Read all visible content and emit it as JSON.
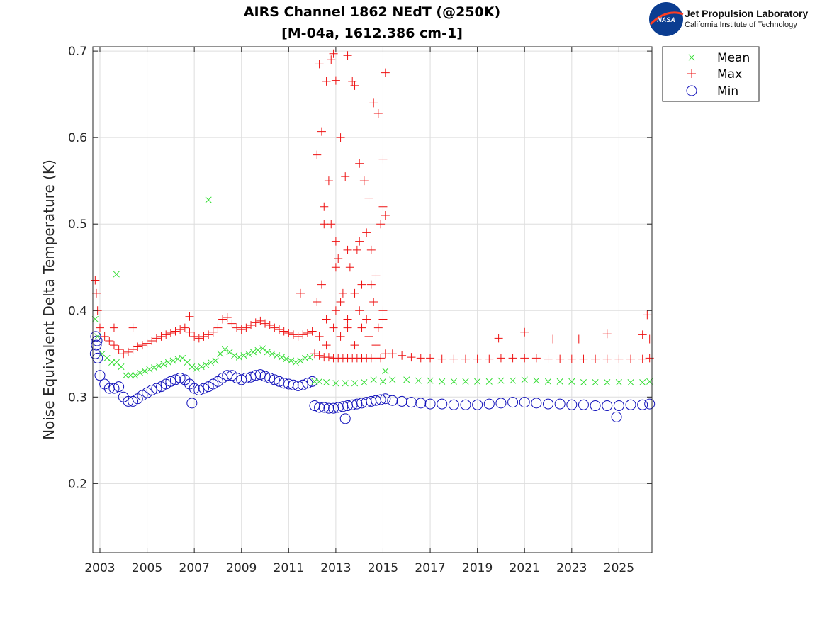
{
  "chart_data": {
    "type": "scatter",
    "title": [
      "AIRS Channel 1862 NEdT (@250K)",
      "[M-04a, 1612.386 cm-1]"
    ],
    "ylabel": "Noise Equivalent Delta Temperature (K)",
    "xlabel": "",
    "xlim": [
      2002.7,
      2026.4
    ],
    "ylim": [
      0.12,
      0.705
    ],
    "xticks": [
      2003,
      2005,
      2007,
      2009,
      2011,
      2013,
      2015,
      2017,
      2019,
      2021,
      2023,
      2025
    ],
    "yticks": [
      0.2,
      0.3,
      0.4,
      0.5,
      0.6,
      0.7
    ],
    "xticklabels": [
      "2003",
      "2005",
      "2007",
      "2009",
      "2011",
      "2013",
      "2015",
      "2017",
      "2019",
      "2021",
      "2023",
      "2025"
    ],
    "yticklabels": [
      "0.2",
      "0.3",
      "0.4",
      "0.5",
      "0.6",
      "0.7"
    ],
    "grid": true,
    "legend_position": "outside-top-right",
    "colors": {
      "Mean": "#33dd33",
      "Max": "#ee1111",
      "Min": "#1111bb"
    },
    "series": [
      {
        "name": "Mean",
        "marker": "x",
        "x": [
          2002.8,
          2002.9,
          2003.1,
          2003.3,
          2003.5,
          2003.7,
          2003.9,
          2004.1,
          2004.3,
          2004.5,
          2004.7,
          2004.9,
          2005.1,
          2005.3,
          2005.5,
          2005.7,
          2005.9,
          2006.1,
          2006.3,
          2006.5,
          2006.7,
          2006.9,
          2007.1,
          2007.3,
          2007.5,
          2007.7,
          2007.9,
          2008.1,
          2008.3,
          2008.5,
          2008.7,
          2008.9,
          2009.1,
          2009.3,
          2009.5,
          2009.7,
          2009.9,
          2010.1,
          2010.3,
          2010.5,
          2010.7,
          2010.9,
          2011.1,
          2011.3,
          2011.5,
          2011.7,
          2011.9,
          2012.1,
          2012.3,
          2012.6,
          2013.0,
          2013.4,
          2013.8,
          2014.2,
          2014.6,
          2015.0,
          2015.1,
          2015.4,
          2016.0,
          2016.5,
          2017.0,
          2017.5,
          2018.0,
          2018.5,
          2019.0,
          2019.5,
          2020.0,
          2020.5,
          2021.0,
          2021.5,
          2022.0,
          2022.5,
          2023.0,
          2023.5,
          2024.0,
          2024.5,
          2025.0,
          2025.5,
          2026.0,
          2026.3,
          2003.7,
          2007.6
        ],
        "y": [
          0.39,
          0.37,
          0.35,
          0.345,
          0.34,
          0.34,
          0.335,
          0.325,
          0.325,
          0.325,
          0.328,
          0.33,
          0.332,
          0.334,
          0.336,
          0.338,
          0.34,
          0.342,
          0.344,
          0.345,
          0.34,
          0.335,
          0.333,
          0.335,
          0.337,
          0.34,
          0.342,
          0.35,
          0.355,
          0.352,
          0.348,
          0.346,
          0.348,
          0.35,
          0.352,
          0.354,
          0.356,
          0.352,
          0.35,
          0.348,
          0.346,
          0.344,
          0.342,
          0.34,
          0.342,
          0.345,
          0.346,
          0.318,
          0.318,
          0.317,
          0.316,
          0.316,
          0.316,
          0.317,
          0.32,
          0.318,
          0.33,
          0.32,
          0.32,
          0.319,
          0.319,
          0.318,
          0.318,
          0.318,
          0.318,
          0.318,
          0.319,
          0.319,
          0.32,
          0.319,
          0.318,
          0.318,
          0.318,
          0.317,
          0.317,
          0.317,
          0.317,
          0.317,
          0.317,
          0.318,
          0.442,
          0.528
        ]
      },
      {
        "name": "Max",
        "marker": "+",
        "x": [
          2002.8,
          2002.85,
          2002.9,
          2003.0,
          2003.2,
          2003.4,
          2003.6,
          2003.8,
          2004.0,
          2004.2,
          2004.4,
          2004.6,
          2004.8,
          2005.0,
          2005.2,
          2005.4,
          2005.6,
          2005.8,
          2006.0,
          2006.2,
          2006.4,
          2006.6,
          2006.8,
          2007.0,
          2007.2,
          2007.4,
          2007.6,
          2007.8,
          2008.0,
          2008.2,
          2008.4,
          2008.6,
          2008.8,
          2009.0,
          2009.2,
          2009.4,
          2009.6,
          2009.8,
          2010.0,
          2010.2,
          2010.4,
          2010.6,
          2010.8,
          2011.0,
          2011.2,
          2011.4,
          2011.6,
          2011.8,
          2012.0,
          2012.1,
          2012.3,
          2012.5,
          2012.7,
          2012.9,
          2013.1,
          2013.3,
          2013.5,
          2013.7,
          2013.9,
          2014.1,
          2014.3,
          2014.5,
          2014.7,
          2014.9,
          2015.1,
          2015.4,
          2015.8,
          2016.2,
          2016.6,
          2017.0,
          2017.5,
          2018.0,
          2018.5,
          2019.0,
          2019.5,
          2020.0,
          2020.5,
          2021.0,
          2021.5,
          2022.0,
          2022.5,
          2023.0,
          2023.5,
          2024.0,
          2024.5,
          2025.0,
          2025.5,
          2026.0,
          2026.3,
          2012.2,
          2012.4,
          2012.6,
          2012.8,
          2012.9,
          2013.0,
          2013.2,
          2013.4,
          2013.5,
          2013.7,
          2013.8,
          2014.0,
          2014.2,
          2014.4,
          2014.6,
          2014.8,
          2015.0,
          2015.1,
          2012.3,
          2012.5,
          2012.7,
          2012.8,
          2013.0,
          2013.1,
          2013.3,
          2013.6,
          2013.9,
          2014.1,
          2014.3,
          2014.5,
          2014.7,
          2014.9,
          2015.0,
          2012.2,
          2012.4,
          2012.6,
          2013.0,
          2013.2,
          2013.5,
          2013.8,
          2014.0,
          2014.3,
          2014.6,
          2014.8,
          2015.0,
          2012.3,
          2012.6,
          2012.9,
          2013.2,
          2013.5,
          2013.8,
          2014.1,
          2014.4,
          2014.7,
          2015.0,
          2012.5,
          2013.0,
          2013.5,
          2014.0,
          2014.5,
          2015.1,
          2003.6,
          2004.4,
          2006.8,
          2011.5,
          2019.9,
          2021.0,
          2022.2,
          2023.3,
          2024.5,
          2026.0,
          2026.2,
          2026.3
        ],
        "y": [
          0.435,
          0.42,
          0.4,
          0.38,
          0.37,
          0.365,
          0.36,
          0.355,
          0.35,
          0.352,
          0.355,
          0.358,
          0.36,
          0.362,
          0.365,
          0.368,
          0.37,
          0.372,
          0.374,
          0.376,
          0.378,
          0.38,
          0.375,
          0.37,
          0.368,
          0.37,
          0.372,
          0.375,
          0.38,
          0.39,
          0.392,
          0.385,
          0.38,
          0.378,
          0.38,
          0.383,
          0.386,
          0.388,
          0.385,
          0.383,
          0.38,
          0.378,
          0.376,
          0.374,
          0.372,
          0.37,
          0.372,
          0.374,
          0.376,
          0.35,
          0.348,
          0.346,
          0.346,
          0.345,
          0.345,
          0.345,
          0.345,
          0.345,
          0.345,
          0.345,
          0.345,
          0.345,
          0.345,
          0.345,
          0.35,
          0.35,
          0.348,
          0.346,
          0.345,
          0.345,
          0.344,
          0.344,
          0.344,
          0.344,
          0.344,
          0.345,
          0.345,
          0.345,
          0.345,
          0.344,
          0.344,
          0.344,
          0.344,
          0.344,
          0.344,
          0.344,
          0.344,
          0.344,
          0.345,
          0.58,
          0.607,
          0.665,
          0.69,
          0.697,
          0.666,
          0.6,
          0.555,
          0.695,
          0.665,
          0.66,
          0.57,
          0.55,
          0.53,
          0.64,
          0.628,
          0.575,
          0.675,
          0.685,
          0.52,
          0.55,
          0.5,
          0.48,
          0.46,
          0.42,
          0.45,
          0.47,
          0.43,
          0.49,
          0.47,
          0.44,
          0.5,
          0.52,
          0.41,
          0.43,
          0.39,
          0.4,
          0.41,
          0.38,
          0.42,
          0.4,
          0.39,
          0.41,
          0.38,
          0.4,
          0.37,
          0.36,
          0.38,
          0.37,
          0.39,
          0.36,
          0.38,
          0.37,
          0.36,
          0.39,
          0.5,
          0.45,
          0.47,
          0.48,
          0.43,
          0.51,
          0.38,
          0.38,
          0.393,
          0.42,
          0.368,
          0.375,
          0.367,
          0.367,
          0.373,
          0.372,
          0.395,
          0.367
        ]
      },
      {
        "name": "Min",
        "marker": "o",
        "x": [
          2002.8,
          2002.85,
          2002.9,
          2003.0,
          2003.2,
          2003.4,
          2003.6,
          2003.8,
          2004.0,
          2004.2,
          2004.4,
          2004.6,
          2004.8,
          2005.0,
          2005.2,
          2005.4,
          2005.6,
          2005.8,
          2006.0,
          2006.2,
          2006.4,
          2006.6,
          2006.8,
          2007.0,
          2007.2,
          2007.4,
          2007.6,
          2007.8,
          2008.0,
          2008.2,
          2008.4,
          2008.6,
          2008.8,
          2009.0,
          2009.2,
          2009.4,
          2009.6,
          2009.8,
          2010.0,
          2010.2,
          2010.4,
          2010.6,
          2010.8,
          2011.0,
          2011.2,
          2011.4,
          2011.6,
          2011.8,
          2012.0,
          2012.1,
          2012.3,
          2012.5,
          2012.7,
          2012.9,
          2013.1,
          2013.3,
          2013.5,
          2013.7,
          2013.9,
          2014.1,
          2014.3,
          2014.5,
          2014.7,
          2014.9,
          2015.1,
          2015.4,
          2015.8,
          2016.2,
          2016.6,
          2017.0,
          2017.5,
          2018.0,
          2018.5,
          2019.0,
          2019.5,
          2020.0,
          2020.5,
          2021.0,
          2021.5,
          2022.0,
          2022.5,
          2023.0,
          2023.5,
          2024.0,
          2024.5,
          2025.0,
          2025.5,
          2026.0,
          2026.3,
          2002.82,
          2002.88,
          2013.4,
          2024.9,
          2006.9
        ],
        "y": [
          0.35,
          0.36,
          0.345,
          0.325,
          0.315,
          0.31,
          0.31,
          0.312,
          0.3,
          0.295,
          0.295,
          0.298,
          0.302,
          0.305,
          0.308,
          0.31,
          0.312,
          0.315,
          0.318,
          0.32,
          0.322,
          0.32,
          0.315,
          0.31,
          0.308,
          0.31,
          0.312,
          0.315,
          0.318,
          0.322,
          0.325,
          0.325,
          0.322,
          0.32,
          0.322,
          0.323,
          0.325,
          0.326,
          0.324,
          0.322,
          0.32,
          0.318,
          0.316,
          0.315,
          0.314,
          0.313,
          0.314,
          0.316,
          0.318,
          0.29,
          0.288,
          0.288,
          0.287,
          0.287,
          0.288,
          0.289,
          0.29,
          0.291,
          0.292,
          0.293,
          0.294,
          0.295,
          0.296,
          0.297,
          0.298,
          0.296,
          0.295,
          0.294,
          0.293,
          0.292,
          0.292,
          0.291,
          0.291,
          0.291,
          0.292,
          0.293,
          0.294,
          0.294,
          0.293,
          0.292,
          0.292,
          0.291,
          0.291,
          0.29,
          0.29,
          0.29,
          0.291,
          0.291,
          0.292,
          0.37,
          0.365,
          0.275,
          0.277,
          0.293
        ]
      }
    ]
  },
  "logo": {
    "emblem_text": "NASA",
    "org_name": "Jet Propulsion Laboratory",
    "org_sub": "California Institute of Technology"
  }
}
